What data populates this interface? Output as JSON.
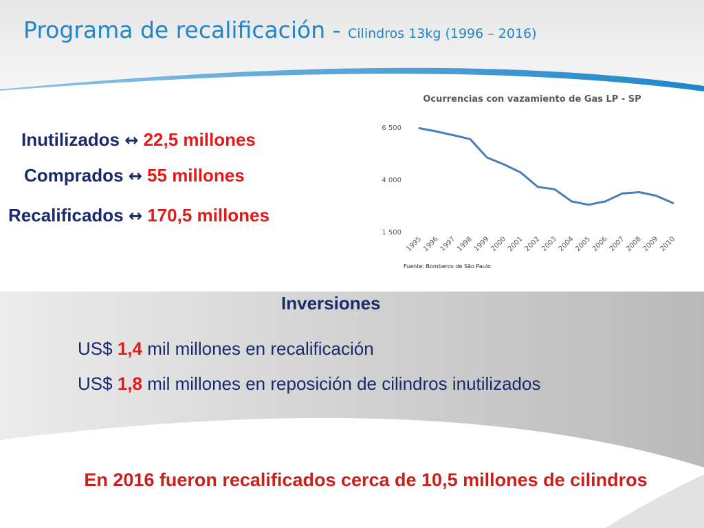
{
  "title": {
    "main": "Programa de recalificación - ",
    "sub": "Cilindros 13kg (1996 – 2016)"
  },
  "stats": [
    {
      "label": "Inutilizados",
      "arrow": "↔",
      "value": "22,5 millones"
    },
    {
      "label": "Comprados",
      "arrow": "↔",
      "value": "55 millones"
    },
    {
      "label": "Recalificados",
      "arrow": "↔",
      "value": "170,5 millones"
    }
  ],
  "chart_data": {
    "type": "line",
    "title": "Ocurrencias con vazamiento de Gas LP - SP",
    "source": "Fuente: Bomberos de São Paulo",
    "x": [
      "1995",
      "1996",
      "1997",
      "1998",
      "1999",
      "2000",
      "2001",
      "2002",
      "2003",
      "2004",
      "2005",
      "2006",
      "2007",
      "2008",
      "2009",
      "2010"
    ],
    "series": [
      {
        "values": [
          6450,
          6300,
          6120,
          5930,
          5050,
          4720,
          4330,
          3640,
          3530,
          2950,
          2790,
          2950,
          3330,
          3390,
          3220,
          2870
        ]
      }
    ],
    "ylim": [
      1500,
      6500
    ],
    "yticks": [
      1500,
      4000,
      6500
    ],
    "ytick_labels": [
      "1 500",
      "4 000",
      "6 500"
    ],
    "line_color": "#4a7ebb",
    "grid": false,
    "legend": "none"
  },
  "investments": {
    "heading": "Inversiones",
    "lines": [
      {
        "prefix": "US$ ",
        "amount": "1,4",
        "suffix": " mil millones en recalificación"
      },
      {
        "prefix": "US$ ",
        "amount": "1,8",
        "suffix": " mil millones en reposición de cilindros inutilizados"
      }
    ]
  },
  "conclusion": "En 2016 fueron recalificados cerca de 10,5 millones de cilindros",
  "colors": {
    "title": "#1f86c9",
    "label": "#1a2a6c",
    "accent_red": "#e31a1a",
    "conclusion": "#c9201e",
    "background_gray": "#c8c8c8"
  }
}
